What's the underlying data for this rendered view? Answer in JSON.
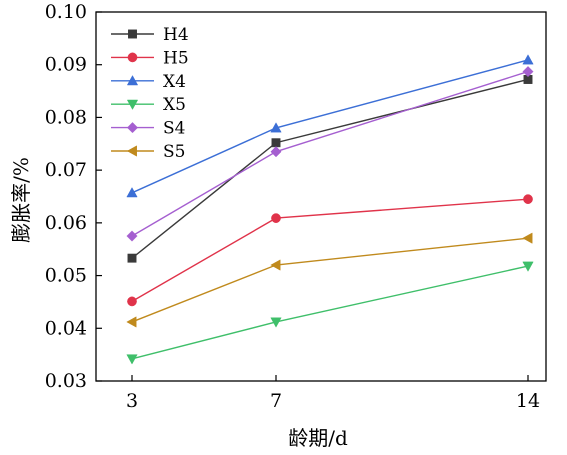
{
  "chart_data": {
    "type": "line",
    "xlabel": "龄期/d",
    "ylabel": "膨胀率/%",
    "x": [
      3,
      7,
      14
    ],
    "xticks": [
      "3",
      "7",
      "14"
    ],
    "xlim": [
      2,
      14.5
    ],
    "ylim": [
      0.03,
      0.1
    ],
    "yticks": [
      "0.03",
      "0.04",
      "0.05",
      "0.06",
      "0.07",
      "0.08",
      "0.09",
      "0.10"
    ],
    "legend_position": "top-left",
    "grid": false,
    "series": [
      {
        "name": "H4",
        "color": "#3a3a3a",
        "marker": "square",
        "values": [
          0.0533,
          0.0752,
          0.0872
        ]
      },
      {
        "name": "H5",
        "color": "#e0334a",
        "marker": "circle",
        "values": [
          0.0451,
          0.0609,
          0.0645
        ]
      },
      {
        "name": "X4",
        "color": "#3c6fd6",
        "marker": "triangle-up",
        "values": [
          0.0657,
          0.078,
          0.0909
        ]
      },
      {
        "name": "X5",
        "color": "#3fbf6a",
        "marker": "triangle-down",
        "values": [
          0.0342,
          0.0412,
          0.0518
        ]
      },
      {
        "name": "S4",
        "color": "#a55fd0",
        "marker": "diamond",
        "values": [
          0.0575,
          0.0735,
          0.0887
        ]
      },
      {
        "name": "S5",
        "color": "#c08a1d",
        "marker": "triangle-left",
        "values": [
          0.0412,
          0.052,
          0.0571
        ]
      }
    ]
  }
}
